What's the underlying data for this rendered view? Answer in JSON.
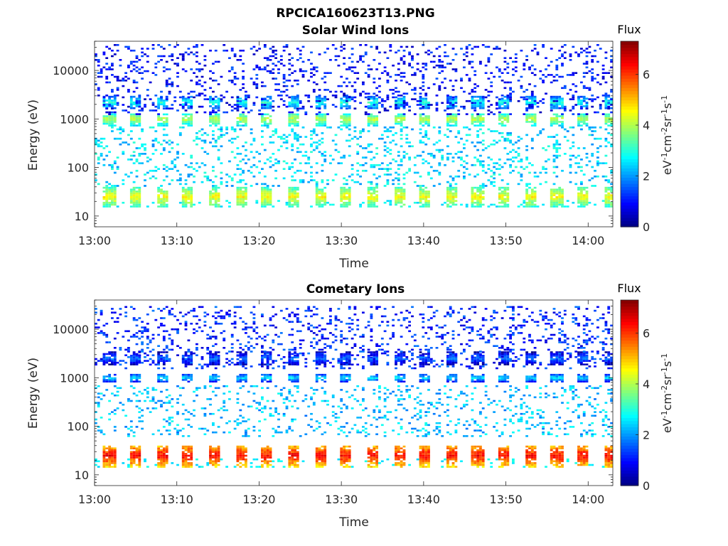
{
  "figure": {
    "title": "RPCICA160623T13.PNG"
  },
  "colors": {
    "colormap": "jet",
    "axis": "#262626",
    "background": "#ffffff"
  },
  "chart_data": [
    {
      "type": "heatmap",
      "title": "Solar Wind Ions",
      "xlabel": "Time",
      "ylabel": "Energy (eV)",
      "x_ticks": [
        "13:00",
        "13:10",
        "13:20",
        "13:30",
        "13:40",
        "13:50",
        "14:00"
      ],
      "x_range": [
        "13:00",
        "14:03"
      ],
      "y_scale": "log",
      "y_ticks": [
        10,
        100,
        1000,
        10000
      ],
      "y_range": [
        6,
        40000
      ],
      "colorbar": {
        "title": "Flux",
        "label": "eV-1cm-2sr-1s-1",
        "range": [
          0,
          7.3
        ],
        "ticks": [
          0,
          2,
          4,
          6
        ]
      },
      "sweep_period_min": 3.2,
      "populations": [
        {
          "energy_eV": 25,
          "energy_spread_eV": [
            15,
            40
          ],
          "peak_flux": 4.6,
          "type": "periodic"
        },
        {
          "energy_eV": 1000,
          "energy_spread_eV": [
            700,
            1300
          ],
          "peak_flux": 4.2,
          "type": "periodic"
        },
        {
          "energy_eV": 2200,
          "energy_spread_eV": [
            1600,
            3000
          ],
          "peak_flux": 3.0,
          "type": "periodic"
        },
        {
          "energy_eV": 150,
          "energy_spread_eV": [
            40,
            700
          ],
          "peak_flux": 2.5,
          "type": "background"
        },
        {
          "energy_eV": 8000,
          "energy_spread_eV": [
            1200,
            35000
          ],
          "peak_flux": 1.0,
          "type": "background"
        }
      ]
    },
    {
      "type": "heatmap",
      "title": "Cometary Ions",
      "xlabel": "Time",
      "ylabel": "Energy (eV)",
      "x_ticks": [
        "13:00",
        "13:10",
        "13:20",
        "13:30",
        "13:40",
        "13:50",
        "14:00"
      ],
      "x_range": [
        "13:00",
        "14:03"
      ],
      "y_scale": "log",
      "y_ticks": [
        10,
        100,
        1000,
        10000
      ],
      "y_range": [
        6,
        40000
      ],
      "colorbar": {
        "title": "Flux",
        "label": "eV-1cm-2sr-1s-1",
        "range": [
          0,
          7.3
        ],
        "ticks": [
          0,
          2,
          4,
          6
        ]
      },
      "sweep_period_min": 3.2,
      "populations": [
        {
          "energy_eV": 25,
          "energy_spread_eV": [
            14,
            40
          ],
          "peak_flux": 6.4,
          "type": "periodic"
        },
        {
          "energy_eV": 1000,
          "energy_spread_eV": [
            800,
            1200
          ],
          "peak_flux": 2.6,
          "type": "periodic"
        },
        {
          "energy_eV": 2500,
          "energy_spread_eV": [
            1800,
            3500
          ],
          "peak_flux": 1.8,
          "type": "periodic"
        },
        {
          "energy_eV": 200,
          "energy_spread_eV": [
            60,
            700
          ],
          "peak_flux": 2.3,
          "type": "background"
        },
        {
          "energy_eV": 8000,
          "energy_spread_eV": [
            1500,
            30000
          ],
          "peak_flux": 1.2,
          "type": "background"
        }
      ]
    }
  ]
}
